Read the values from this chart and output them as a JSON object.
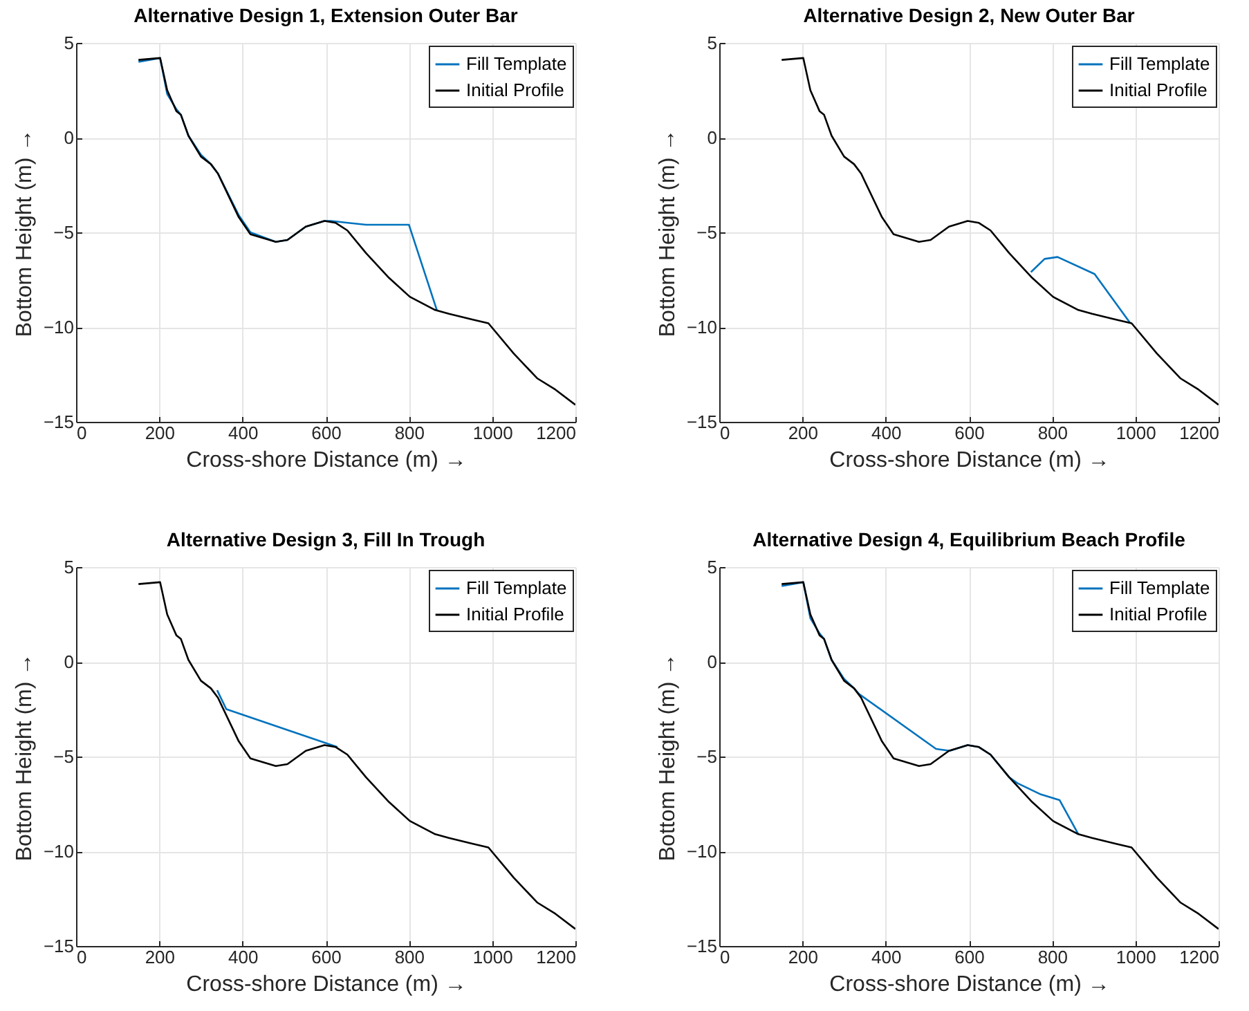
{
  "chart_data": [
    {
      "type": "line",
      "title": "Alternative Design 1, Extension Outer Bar",
      "xlabel": "Cross-shore Distance (m) →",
      "ylabel": "Bottom Height (m) →",
      "xlim": [
        0,
        1200
      ],
      "xticks": [
        0,
        200,
        400,
        600,
        800,
        1000,
        1200
      ],
      "ylim": [
        -15,
        5
      ],
      "yticks": [
        -15,
        -10,
        -5,
        0,
        5
      ],
      "grid": true,
      "legend": "top right",
      "series": [
        {
          "name": "Fill Template",
          "color": "#0072bd",
          "x": [
            150,
            202,
            219,
            241,
            252,
            270,
            300,
            324,
            341,
            391,
            419,
            480,
            508,
            552,
            597,
            613,
            697,
            800,
            867
          ],
          "values": [
            4.0,
            4.2,
            2.3,
            1.5,
            1.2,
            0.1,
            -0.9,
            -1.4,
            -1.9,
            -4.1,
            -5.0,
            -5.5,
            -5.4,
            -4.7,
            -4.4,
            -4.4,
            -4.6,
            -4.6,
            -9.1
          ]
        },
        {
          "name": "Initial Profile",
          "color": "#000000",
          "x": [
            150,
            202,
            219,
            241,
            252,
            270,
            300,
            324,
            341,
            391,
            419,
            480,
            508,
            552,
            597,
            624,
            652,
            697,
            752,
            802,
            863,
            896,
            952,
            991,
            1052,
            1108,
            1152,
            1200
          ],
          "values": [
            4.1,
            4.2,
            2.5,
            1.4,
            1.2,
            0.1,
            -1.0,
            -1.4,
            -1.9,
            -4.2,
            -5.1,
            -5.5,
            -5.4,
            -4.7,
            -4.4,
            -4.5,
            -4.9,
            -6.1,
            -7.4,
            -8.4,
            -9.1,
            -9.3,
            -9.6,
            -9.8,
            -11.4,
            -12.7,
            -13.3,
            -14.1
          ]
        }
      ]
    },
    {
      "type": "line",
      "title": "Alternative Design 2, New Outer Bar",
      "xlabel": "Cross-shore Distance (m) →",
      "ylabel": "Bottom Height (m) →",
      "xlim": [
        0,
        1200
      ],
      "xticks": [
        0,
        200,
        400,
        600,
        800,
        1000,
        1200
      ],
      "ylim": [
        -15,
        5
      ],
      "yticks": [
        -15,
        -10,
        -5,
        0,
        5
      ],
      "grid": true,
      "legend": "top right",
      "series": [
        {
          "name": "Fill Template",
          "color": "#0072bd",
          "x": [
            749,
            782,
            813,
            902,
            988
          ],
          "values": [
            -7.1,
            -6.4,
            -6.3,
            -7.2,
            -9.8
          ]
        },
        {
          "name": "Initial Profile",
          "color": "#000000",
          "x": [
            150,
            202,
            219,
            241,
            252,
            270,
            300,
            324,
            341,
            391,
            419,
            480,
            508,
            552,
            597,
            624,
            652,
            697,
            752,
            802,
            863,
            896,
            952,
            991,
            1052,
            1108,
            1152,
            1200
          ],
          "values": [
            4.1,
            4.2,
            2.5,
            1.4,
            1.2,
            0.1,
            -1.0,
            -1.4,
            -1.9,
            -4.2,
            -5.1,
            -5.5,
            -5.4,
            -4.7,
            -4.4,
            -4.5,
            -4.9,
            -6.1,
            -7.4,
            -8.4,
            -9.1,
            -9.3,
            -9.6,
            -9.8,
            -11.4,
            -12.7,
            -13.3,
            -14.1
          ]
        }
      ]
    },
    {
      "type": "line",
      "title": "Alternative Design 3, Fill In Trough",
      "xlabel": "Cross-shore Distance (m) →",
      "ylabel": "Bottom Height (m) →",
      "xlim": [
        0,
        1200
      ],
      "xticks": [
        0,
        200,
        400,
        600,
        800,
        1000,
        1200
      ],
      "ylim": [
        -15,
        5
      ],
      "yticks": [
        -15,
        -10,
        -5,
        0,
        5
      ],
      "grid": true,
      "legend": "top right",
      "series": [
        {
          "name": "Fill Template",
          "color": "#0072bd",
          "x": [
            339,
            361,
            628
          ],
          "values": [
            -1.5,
            -2.5,
            -4.5
          ]
        },
        {
          "name": "Initial Profile",
          "color": "#000000",
          "x": [
            150,
            202,
            219,
            241,
            252,
            270,
            300,
            324,
            341,
            391,
            419,
            480,
            508,
            552,
            597,
            624,
            652,
            697,
            752,
            802,
            863,
            896,
            952,
            991,
            1052,
            1108,
            1152,
            1200
          ],
          "values": [
            4.1,
            4.2,
            2.5,
            1.4,
            1.2,
            0.1,
            -1.0,
            -1.4,
            -1.9,
            -4.2,
            -5.1,
            -5.5,
            -5.4,
            -4.7,
            -4.4,
            -4.5,
            -4.9,
            -6.1,
            -7.4,
            -8.4,
            -9.1,
            -9.3,
            -9.6,
            -9.8,
            -11.4,
            -12.7,
            -13.3,
            -14.1
          ]
        }
      ]
    },
    {
      "type": "line",
      "title": "Alternative Design 4, Equilibrium Beach Profile",
      "xlabel": "Cross-shore Distance (m) →",
      "ylabel": "Bottom Height (m) →",
      "xlim": [
        0,
        1200
      ],
      "xticks": [
        0,
        200,
        400,
        600,
        800,
        1000,
        1200
      ],
      "ylim": [
        -15,
        5
      ],
      "yticks": [
        -15,
        -10,
        -5,
        0,
        5
      ],
      "grid": true,
      "legend": "top right",
      "series": [
        {
          "name": "Fill Template",
          "color": "#0072bd",
          "x": [
            150,
            202,
            219,
            241,
            252,
            270,
            300,
            324,
            336,
            521,
            554,
            597,
            624,
            652,
            697,
            716,
            773,
            818,
            863
          ],
          "values": [
            4.0,
            4.2,
            2.3,
            1.5,
            1.2,
            0.1,
            -0.9,
            -1.4,
            -1.7,
            -4.6,
            -4.7,
            -4.4,
            -4.5,
            -4.9,
            -6.1,
            -6.4,
            -7.0,
            -7.3,
            -9.1
          ]
        },
        {
          "name": "Initial Profile",
          "color": "#000000",
          "x": [
            150,
            202,
            219,
            241,
            252,
            270,
            300,
            324,
            341,
            391,
            419,
            480,
            508,
            552,
            597,
            624,
            652,
            697,
            752,
            802,
            863,
            896,
            952,
            991,
            1052,
            1108,
            1152,
            1200
          ],
          "values": [
            4.1,
            4.2,
            2.5,
            1.4,
            1.2,
            0.1,
            -1.0,
            -1.4,
            -1.9,
            -4.2,
            -5.1,
            -5.5,
            -5.4,
            -4.7,
            -4.4,
            -4.5,
            -4.9,
            -6.1,
            -7.4,
            -8.4,
            -9.1,
            -9.3,
            -9.6,
            -9.8,
            -11.4,
            -12.7,
            -13.3,
            -14.1
          ]
        }
      ]
    }
  ]
}
